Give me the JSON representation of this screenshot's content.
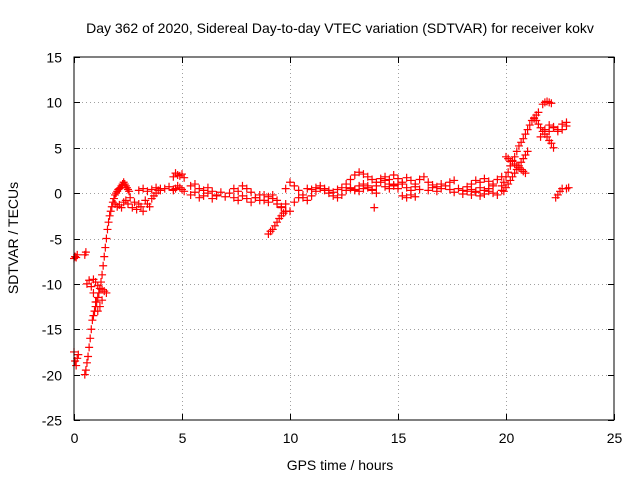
{
  "chart_data": {
    "type": "scatter",
    "title": "Day 362 of 2020, Sidereal Day-to-day VTEC variation (SDTVAR) for receiver kokv",
    "xlabel": "GPS time / hours",
    "ylabel": "SDTVAR / TECUs",
    "xlim": [
      0,
      25
    ],
    "ylim": [
      -25,
      15
    ],
    "xticks": [
      0,
      5,
      10,
      15,
      20,
      25
    ],
    "yticks": [
      -25,
      -20,
      -15,
      -10,
      -5,
      0,
      5,
      10,
      15
    ],
    "grid": true,
    "marker": "+",
    "color": "#ff0000",
    "segments": [
      {
        "x": [
          0.0,
          0.05,
          0.1,
          0.15
        ],
        "y": [
          -7.2,
          -7.0,
          -7.1,
          -6.8
        ]
      },
      {
        "x": [
          0.0,
          0.05,
          0.1,
          0.15,
          0.2
        ],
        "y": [
          -17.5,
          -18.5,
          -19.0,
          -18.2,
          -17.8
        ]
      },
      {
        "x": [
          0.5,
          0.55
        ],
        "y": [
          -6.8,
          -6.5
        ]
      },
      {
        "x": [
          0.5,
          0.55,
          0.6,
          0.65,
          0.7,
          0.75,
          0.8,
          0.85,
          0.9,
          0.95,
          1.0,
          1.05,
          1.1,
          1.15,
          1.2,
          1.25,
          1.3,
          1.35,
          1.4,
          1.45,
          1.5,
          1.55,
          1.6,
          1.65,
          1.7,
          1.75,
          1.8,
          1.85,
          1.9,
          1.95,
          2.0,
          2.05,
          2.1,
          2.15,
          2.2,
          2.25,
          2.3,
          2.35,
          2.4,
          2.45,
          2.5,
          2.55
        ],
        "y": [
          -20.0,
          -19.5,
          -18.7,
          -18.0,
          -17.0,
          -16.0,
          -15.0,
          -14.0,
          -13.5,
          -13.0,
          -12.5,
          -12.0,
          -11.5,
          -11.0,
          -10.5,
          -9.8,
          -9.0,
          -8.0,
          -7.0,
          -6.0,
          -5.0,
          -4.0,
          -3.2,
          -2.5,
          -2.0,
          -1.5,
          -1.0,
          -0.6,
          -0.2,
          0.0,
          0.2,
          0.4,
          0.5,
          0.6,
          0.8,
          1.0,
          1.2,
          1.0,
          0.8,
          0.6,
          0.4,
          0.2
        ]
      },
      {
        "x": [
          0.6,
          0.7,
          0.8,
          0.9,
          1.0,
          1.1,
          1.2,
          1.3
        ],
        "y": [
          -10.0,
          -9.6,
          -10.3,
          -11.0,
          -12.0,
          -13.0,
          -12.5,
          -11.8
        ]
      },
      {
        "x": [
          0.9,
          1.0,
          1.1,
          1.2,
          1.3,
          1.4,
          1.5
        ],
        "y": [
          -9.5,
          -9.8,
          -10.2,
          -10.5,
          -10.6,
          -10.8,
          -11.0
        ]
      },
      {
        "x": [
          1.9,
          2.0,
          2.1,
          2.2,
          2.3,
          2.4,
          2.5,
          2.6,
          2.7,
          2.8,
          2.9,
          3.0,
          3.1,
          3.2,
          3.3,
          3.4,
          3.5,
          3.6,
          3.7,
          3.8,
          3.9,
          4.0
        ],
        "y": [
          -1.2,
          -1.5,
          -1.3,
          -1.6,
          -1.0,
          -0.8,
          -1.2,
          -0.5,
          -1.6,
          -1.0,
          -1.8,
          -1.2,
          -1.5,
          -2.0,
          -0.8,
          -1.2,
          -1.5,
          -0.6,
          -0.3,
          0.0,
          0.3,
          0.5
        ]
      },
      {
        "x": [
          3.0,
          3.2,
          3.4,
          3.6,
          3.8,
          4.0,
          4.2,
          4.4,
          4.6
        ],
        "y": [
          0.3,
          0.5,
          0.2,
          0.4,
          0.6,
          0.3,
          0.5,
          0.7,
          0.4
        ]
      },
      {
        "x": [
          4.6,
          4.7,
          4.8,
          4.9,
          5.0,
          5.1
        ],
        "y": [
          1.8,
          2.2,
          2.0,
          1.9,
          2.1,
          1.7
        ]
      },
      {
        "x": [
          4.6,
          4.7,
          4.8,
          4.9,
          5.0,
          5.1
        ],
        "y": [
          0.3,
          0.5,
          0.8,
          0.6,
          0.4,
          0.2
        ]
      },
      {
        "x": [
          5.4,
          5.6,
          5.8,
          6.0,
          6.2,
          6.4,
          6.6,
          6.8,
          7.0,
          7.2,
          7.4,
          7.6,
          7.8,
          8.0,
          8.2,
          8.4,
          8.6,
          8.8,
          9.0
        ],
        "y": [
          0.8,
          1.0,
          0.5,
          0.3,
          0.6,
          0.2,
          -0.3,
          0.1,
          -0.4,
          0.0,
          0.5,
          0.2,
          0.8,
          0.5,
          0.1,
          -0.5,
          -0.2,
          -0.8,
          -1.0
        ]
      },
      {
        "x": [
          5.4,
          5.6,
          5.8,
          6.0,
          6.2,
          6.4,
          6.6
        ],
        "y": [
          -0.2,
          0.1,
          -0.5,
          -0.3,
          0.0,
          -0.6,
          -0.2
        ]
      },
      {
        "x": [
          7.4,
          7.6,
          7.8,
          8.0,
          8.2,
          8.4,
          8.6,
          8.8,
          9.0,
          9.2,
          9.4,
          9.6,
          9.8
        ],
        "y": [
          -0.5,
          -0.8,
          -0.3,
          -0.6,
          -1.0,
          -0.5,
          -0.8,
          -0.2,
          -0.4,
          -0.6,
          -1.2,
          -1.6,
          -2.0
        ]
      },
      {
        "x": [
          9.0,
          9.1,
          9.2,
          9.3,
          9.4,
          9.5,
          9.6,
          9.7,
          9.8
        ],
        "y": [
          -4.5,
          -4.2,
          -4.0,
          -3.6,
          -3.2,
          -2.8,
          -2.5,
          -2.2,
          -2.0
        ]
      },
      {
        "x": [
          9.2,
          9.4,
          9.6,
          9.8,
          10.0,
          10.2,
          10.4
        ],
        "y": [
          -0.2,
          -0.8,
          -1.5,
          -1.2,
          -2.0,
          -1.0,
          -0.5
        ]
      },
      {
        "x": [
          9.8,
          10.0,
          10.2,
          10.4,
          10.6,
          10.8
        ],
        "y": [
          0.5,
          1.2,
          0.8,
          0.3,
          -0.2,
          0.5
        ]
      },
      {
        "x": [
          10.6,
          10.8,
          11.0,
          11.2,
          11.4,
          11.6,
          11.8,
          12.0,
          12.2,
          12.4,
          12.6,
          12.8,
          13.0,
          13.2,
          13.4,
          13.6,
          13.8,
          14.0
        ],
        "y": [
          -0.5,
          -0.8,
          -0.3,
          0.2,
          0.5,
          0.3,
          0.0,
          -0.3,
          -0.5,
          -0.2,
          0.3,
          0.6,
          0.4,
          0.2,
          0.5,
          0.8,
          0.3,
          0.0
        ]
      },
      {
        "x": [
          11.0,
          11.2,
          11.4,
          11.6,
          11.8,
          12.0,
          12.2,
          12.4
        ],
        "y": [
          0.4,
          0.6,
          0.8,
          0.5,
          0.3,
          0.1,
          0.4,
          0.6
        ]
      },
      {
        "x": [
          12.6,
          12.8,
          13.0,
          13.2,
          13.4,
          13.6,
          13.8,
          14.0,
          14.2,
          14.4,
          14.6
        ],
        "y": [
          1.0,
          1.5,
          2.0,
          2.3,
          2.1,
          1.8,
          1.5,
          1.2,
          1.6,
          1.4,
          1.0
        ]
      },
      {
        "x": [
          12.8,
          13.0,
          13.2,
          13.4,
          13.6,
          13.8,
          14.0,
          14.2,
          14.4,
          14.6,
          14.8,
          15.0
        ],
        "y": [
          0.5,
          0.3,
          0.8,
          1.0,
          0.6,
          0.4,
          0.8,
          1.2,
          0.7,
          0.5,
          0.9,
          1.0
        ]
      },
      {
        "x": [
          13.9
        ],
        "y": [
          -1.6
        ]
      },
      {
        "x": [
          14.4,
          14.6,
          14.8,
          15.0,
          15.2,
          15.4,
          15.6,
          15.8,
          16.0,
          16.2,
          16.4
        ],
        "y": [
          1.8,
          1.5,
          2.0,
          1.6,
          1.2,
          1.7,
          1.4,
          1.0,
          1.5,
          1.8,
          1.2
        ]
      },
      {
        "x": [
          14.8,
          15.0,
          15.2,
          15.4,
          15.6,
          15.8,
          16.0
        ],
        "y": [
          0.8,
          0.5,
          1.0,
          0.6,
          0.3,
          0.7,
          0.4
        ]
      },
      {
        "x": [
          15.2,
          15.4,
          15.6,
          15.8
        ],
        "y": [
          -0.3,
          -0.5,
          -0.2,
          -0.4
        ]
      },
      {
        "x": [
          16.4,
          16.6,
          16.8,
          17.0,
          17.2,
          17.4,
          17.6,
          17.8,
          18.0,
          18.2,
          18.4,
          18.6,
          18.8,
          19.0,
          19.2,
          19.4
        ],
        "y": [
          0.3,
          0.6,
          0.2,
          0.5,
          0.8,
          0.4,
          0.1,
          0.5,
          0.3,
          0.7,
          0.4,
          0.2,
          0.6,
          0.3,
          0.5,
          0.8
        ]
      },
      {
        "x": [
          16.6,
          16.8,
          17.0,
          17.4,
          17.6
        ],
        "y": [
          0.9,
          0.7,
          1.0,
          1.2,
          1.4
        ]
      },
      {
        "x": [
          18.0,
          18.2,
          18.4,
          18.6,
          18.8,
          19.0,
          19.2,
          19.4,
          19.6,
          19.8
        ],
        "y": [
          -0.1,
          0.2,
          -0.2,
          0.1,
          -0.3,
          -0.1,
          0.2,
          0.0,
          -0.2,
          0.3
        ]
      },
      {
        "x": [
          18.4,
          18.6,
          18.8,
          19.0,
          19.2,
          19.4,
          19.6,
          19.8
        ],
        "y": [
          1.0,
          1.4,
          1.2,
          1.6,
          1.3,
          1.0,
          1.5,
          1.8
        ]
      },
      {
        "x": [
          19.8,
          19.9,
          20.0,
          20.1,
          20.2,
          20.3,
          20.4,
          20.5,
          20.6,
          20.7,
          20.8,
          20.9,
          21.0,
          21.1,
          21.2,
          21.3,
          21.4,
          21.5
        ],
        "y": [
          0.8,
          1.2,
          1.8,
          2.3,
          3.0,
          3.5,
          4.0,
          4.6,
          5.2,
          5.6,
          6.0,
          6.5,
          7.0,
          7.5,
          8.0,
          8.3,
          8.6,
          8.9
        ]
      },
      {
        "x": [
          19.9,
          20.0,
          20.1,
          20.2,
          20.3,
          20.4,
          20.5,
          20.6,
          20.7,
          20.8,
          20.9,
          21.0
        ],
        "y": [
          0.2,
          0.6,
          1.0,
          1.4,
          1.8,
          2.2,
          2.6,
          3.0,
          3.4,
          3.8,
          4.2,
          4.6
        ]
      },
      {
        "x": [
          20.0,
          20.1,
          20.2,
          20.3,
          20.4,
          20.5,
          20.6,
          20.7,
          20.8,
          20.9
        ],
        "y": [
          4.0,
          3.8,
          3.5,
          3.6,
          3.2,
          3.0,
          2.8,
          2.6,
          2.4,
          2.2
        ]
      },
      {
        "x": [
          21.3,
          21.4,
          21.5,
          21.6,
          21.7,
          21.8,
          21.9,
          22.0,
          22.1,
          22.2
        ],
        "y": [
          8.2,
          8.0,
          7.6,
          7.2,
          6.8,
          6.5,
          6.2,
          5.8,
          5.5,
          5.0
        ]
      },
      {
        "x": [
          21.7,
          21.8,
          21.9,
          22.0,
          22.1
        ],
        "y": [
          9.8,
          10.0,
          10.1,
          10.0,
          9.9
        ]
      },
      {
        "x": [
          21.6,
          21.8,
          22.0,
          22.2,
          22.4,
          22.6,
          22.8
        ],
        "y": [
          6.2,
          7.0,
          7.5,
          7.2,
          6.8,
          7.0,
          7.4
        ]
      },
      {
        "x": [
          22.0,
          22.2,
          22.4,
          22.6,
          22.8
        ],
        "y": [
          6.8,
          7.3,
          7.0,
          7.6,
          7.8
        ]
      },
      {
        "x": [
          22.3,
          22.4,
          22.5,
          22.6
        ],
        "y": [
          -0.5,
          -0.2,
          0.2,
          0.5
        ]
      },
      {
        "x": [
          22.8,
          22.9
        ],
        "y": [
          0.5,
          0.6
        ]
      }
    ]
  }
}
